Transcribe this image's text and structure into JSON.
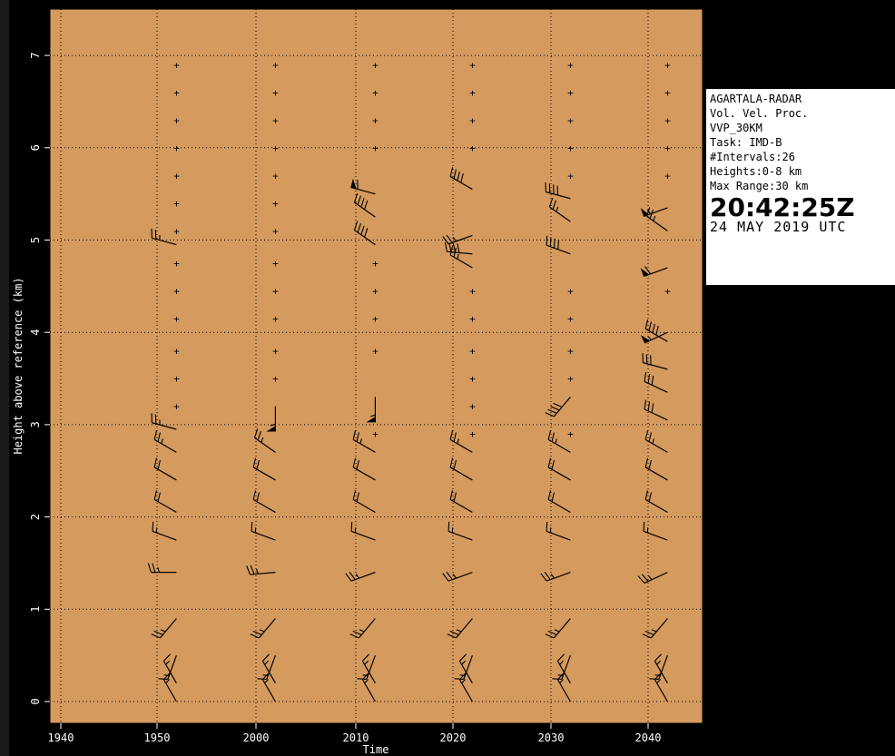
{
  "colors": {
    "plot_bg": "#d59a5e",
    "page_bg": "#000000",
    "ink": "#000000",
    "grid": "#000000"
  },
  "chart_data": {
    "type": "wind-barb profile (VVP time-height)",
    "xlabel": "Time",
    "ylabel": "Height above reference (km)",
    "xticks": [
      "1940",
      "1950",
      "2000",
      "2010",
      "2020",
      "2030",
      "2040"
    ],
    "yticks": [
      "0",
      "1",
      "2",
      "3",
      "4",
      "5",
      "6",
      "7"
    ],
    "ylim": [
      -0.3,
      7.5
    ],
    "grid": "dotted",
    "profile_times": [
      "1952",
      "2002",
      "2012",
      "2022",
      "2032",
      "2042"
    ],
    "empty_marker": "+",
    "missing_heights": [
      [
        3.2,
        3.5,
        3.8,
        4.15,
        4.45,
        4.75,
        5.1,
        5.4,
        5.7,
        6.0,
        6.3,
        6.6,
        6.9
      ],
      [
        3.5,
        3.8,
        4.15,
        4.45,
        4.75,
        5.1,
        5.4,
        5.7,
        6.0,
        6.3,
        6.6,
        6.9
      ],
      [
        2.9,
        3.8,
        4.15,
        4.45,
        4.75,
        6.0,
        6.3,
        6.6,
        6.9
      ],
      [
        2.9,
        3.2,
        3.5,
        3.8,
        4.15,
        4.45,
        6.0,
        6.3,
        6.6,
        6.9
      ],
      [
        2.9,
        3.5,
        3.8,
        4.15,
        4.45,
        5.7,
        6.0,
        6.3,
        6.6,
        6.9
      ],
      [
        4.45,
        5.7,
        6.0,
        6.3,
        6.6,
        6.9
      ]
    ],
    "wind_barbs": [
      {
        "t": "1952",
        "barbs": [
          {
            "h": 0.0,
            "dir": 330,
            "spd": 15
          },
          {
            "h": 0.2,
            "dir": 330,
            "spd": 15
          },
          {
            "h": 0.5,
            "dir": 200,
            "spd": 15
          },
          {
            "h": 0.9,
            "dir": 220,
            "spd": 25
          },
          {
            "h": 1.4,
            "dir": 270,
            "spd": 25
          },
          {
            "h": 1.75,
            "dir": 290,
            "spd": 15
          },
          {
            "h": 2.05,
            "dir": 300,
            "spd": 20
          },
          {
            "h": 2.4,
            "dir": 300,
            "spd": 20
          },
          {
            "h": 2.7,
            "dir": 300,
            "spd": 25
          },
          {
            "h": 2.95,
            "dir": 285,
            "spd": 25
          },
          {
            "h": 4.95,
            "dir": 285,
            "spd": 25
          }
        ]
      },
      {
        "t": "2002",
        "barbs": [
          {
            "h": 0.0,
            "dir": 330,
            "spd": 15
          },
          {
            "h": 0.2,
            "dir": 330,
            "spd": 15
          },
          {
            "h": 0.5,
            "dir": 200,
            "spd": 15
          },
          {
            "h": 0.9,
            "dir": 220,
            "spd": 25
          },
          {
            "h": 1.4,
            "dir": 265,
            "spd": 25
          },
          {
            "h": 1.75,
            "dir": 290,
            "spd": 15
          },
          {
            "h": 2.05,
            "dir": 300,
            "spd": 20
          },
          {
            "h": 2.4,
            "dir": 300,
            "spd": 20
          },
          {
            "h": 2.7,
            "dir": 305,
            "spd": 25
          },
          {
            "h": 3.2,
            "dir": 180,
            "spd": 55
          }
        ]
      },
      {
        "t": "2012",
        "barbs": [
          {
            "h": 0.0,
            "dir": 330,
            "spd": 15
          },
          {
            "h": 0.2,
            "dir": 330,
            "spd": 15
          },
          {
            "h": 0.5,
            "dir": 200,
            "spd": 15
          },
          {
            "h": 0.9,
            "dir": 220,
            "spd": 25
          },
          {
            "h": 1.4,
            "dir": 250,
            "spd": 25
          },
          {
            "h": 1.75,
            "dir": 290,
            "spd": 15
          },
          {
            "h": 2.05,
            "dir": 300,
            "spd": 20
          },
          {
            "h": 2.4,
            "dir": 300,
            "spd": 20
          },
          {
            "h": 2.7,
            "dir": 300,
            "spd": 25
          },
          {
            "h": 3.3,
            "dir": 180,
            "spd": 55
          },
          {
            "h": 4.95,
            "dir": 305,
            "spd": 40
          },
          {
            "h": 5.25,
            "dir": 305,
            "spd": 40
          },
          {
            "h": 5.5,
            "dir": 285,
            "spd": 60
          }
        ]
      },
      {
        "t": "2022",
        "barbs": [
          {
            "h": 0.0,
            "dir": 330,
            "spd": 15
          },
          {
            "h": 0.2,
            "dir": 330,
            "spd": 15
          },
          {
            "h": 0.5,
            "dir": 200,
            "spd": 15
          },
          {
            "h": 0.9,
            "dir": 220,
            "spd": 25
          },
          {
            "h": 1.4,
            "dir": 250,
            "spd": 25
          },
          {
            "h": 1.75,
            "dir": 290,
            "spd": 15
          },
          {
            "h": 2.05,
            "dir": 300,
            "spd": 20
          },
          {
            "h": 2.4,
            "dir": 300,
            "spd": 20
          },
          {
            "h": 2.7,
            "dir": 300,
            "spd": 25
          },
          {
            "h": 4.7,
            "dir": 300,
            "spd": 25
          },
          {
            "h": 4.85,
            "dir": 275,
            "spd": 40
          },
          {
            "h": 5.05,
            "dir": 250,
            "spd": 25
          },
          {
            "h": 5.55,
            "dir": 300,
            "spd": 40
          }
        ]
      },
      {
        "t": "2032",
        "barbs": [
          {
            "h": 0.0,
            "dir": 330,
            "spd": 15
          },
          {
            "h": 0.2,
            "dir": 330,
            "spd": 15
          },
          {
            "h": 0.5,
            "dir": 200,
            "spd": 15
          },
          {
            "h": 0.9,
            "dir": 220,
            "spd": 25
          },
          {
            "h": 1.4,
            "dir": 250,
            "spd": 25
          },
          {
            "h": 1.75,
            "dir": 290,
            "spd": 15
          },
          {
            "h": 2.05,
            "dir": 300,
            "spd": 20
          },
          {
            "h": 2.4,
            "dir": 300,
            "spd": 20
          },
          {
            "h": 2.7,
            "dir": 300,
            "spd": 25
          },
          {
            "h": 3.3,
            "dir": 220,
            "spd": 40
          },
          {
            "h": 4.85,
            "dir": 290,
            "spd": 40
          },
          {
            "h": 5.2,
            "dir": 305,
            "spd": 25
          },
          {
            "h": 5.45,
            "dir": 285,
            "spd": 40
          }
        ]
      },
      {
        "t": "2042",
        "barbs": [
          {
            "h": 0.0,
            "dir": 330,
            "spd": 15
          },
          {
            "h": 0.2,
            "dir": 330,
            "spd": 15
          },
          {
            "h": 0.5,
            "dir": 200,
            "spd": 15
          },
          {
            "h": 0.9,
            "dir": 220,
            "spd": 25
          },
          {
            "h": 1.4,
            "dir": 245,
            "spd": 25
          },
          {
            "h": 1.75,
            "dir": 290,
            "spd": 15
          },
          {
            "h": 2.05,
            "dir": 300,
            "spd": 20
          },
          {
            "h": 2.4,
            "dir": 300,
            "spd": 20
          },
          {
            "h": 2.7,
            "dir": 300,
            "spd": 25
          },
          {
            "h": 3.05,
            "dir": 295,
            "spd": 30
          },
          {
            "h": 3.35,
            "dir": 295,
            "spd": 30
          },
          {
            "h": 3.6,
            "dir": 285,
            "spd": 30
          },
          {
            "h": 3.9,
            "dir": 300,
            "spd": 40
          },
          {
            "h": 4.0,
            "dir": 245,
            "spd": 55
          },
          {
            "h": 4.7,
            "dir": 250,
            "spd": 60
          },
          {
            "h": 5.1,
            "dir": 305,
            "spd": 25
          },
          {
            "h": 5.35,
            "dir": 250,
            "spd": 55
          }
        ]
      }
    ]
  },
  "info_box": {
    "line1": "AGARTALA-RADAR",
    "line2": "Vol. Vel. Proc.",
    "line3": "VVP_30KM",
    "line4": "Task: IMD-B",
    "line5": "#Intervals:26",
    "line6": "Heights:0-8 km",
    "line7": "Max Range:30 km",
    "time": "20:42:25Z",
    "date": "24 MAY 2019 UTC"
  }
}
